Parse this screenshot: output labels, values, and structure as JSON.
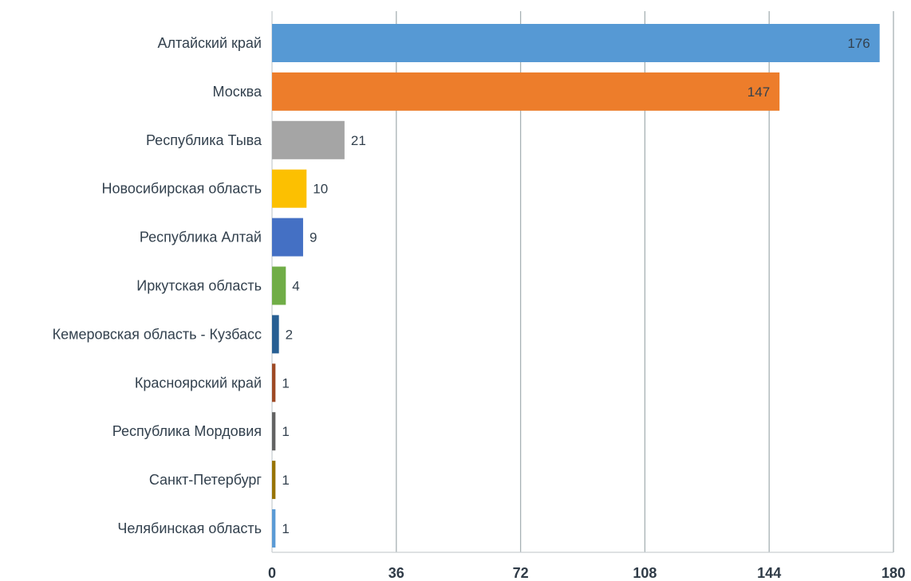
{
  "chart_data": {
    "type": "bar",
    "orientation": "horizontal",
    "title": "",
    "xlabel": "",
    "ylabel": "",
    "categories": [
      "Алтайский край",
      "Москва",
      "Республика Тыва",
      "Новосибирская область",
      "Республика Алтай",
      "Иркутская область",
      "Кемеровская область - Кузбасс",
      "Красноярский край",
      "Республика Мордовия",
      "Санкт-Петербург",
      "Челябинская область"
    ],
    "values": [
      176,
      147,
      21,
      10,
      9,
      4,
      2,
      1,
      1,
      1,
      1
    ],
    "value_labels": [
      "176",
      "147",
      "21",
      "10",
      "9",
      "4",
      "2",
      "1",
      "1",
      "1",
      "1"
    ],
    "colors": [
      "#5699d4",
      "#ed7d2b",
      "#a5a5a5",
      "#fcc001",
      "#4470c4",
      "#70ad47",
      "#275f93",
      "#9e4a25",
      "#636363",
      "#987405",
      "#5b9bd5"
    ],
    "xlim": [
      0,
      180
    ],
    "xticks": [
      0,
      36,
      72,
      108,
      144,
      180
    ],
    "xtick_labels": [
      "0",
      "36",
      "72",
      "108",
      "144",
      "180"
    ],
    "grid": "vertical",
    "legend": "none",
    "gridline_color": "#a7b1b4",
    "axis_color": "#c9cfd2",
    "text_color": "#33414e"
  }
}
